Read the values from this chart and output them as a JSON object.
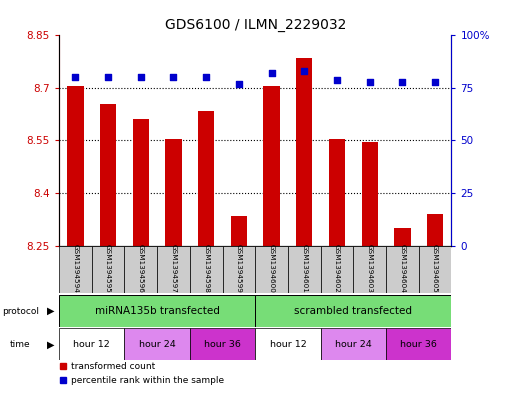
{
  "title": "GDS6100 / ILMN_2229032",
  "samples": [
    "GSM1394594",
    "GSM1394595",
    "GSM1394596",
    "GSM1394597",
    "GSM1394598",
    "GSM1394599",
    "GSM1394600",
    "GSM1394601",
    "GSM1394602",
    "GSM1394603",
    "GSM1394604",
    "GSM1394605"
  ],
  "bar_values": [
    8.705,
    8.655,
    8.61,
    8.555,
    8.635,
    8.335,
    8.705,
    8.785,
    8.555,
    8.545,
    8.3,
    8.34
  ],
  "percentile_values": [
    80,
    80,
    80,
    80,
    80,
    77,
    82,
    83,
    79,
    78,
    78,
    78
  ],
  "y_min": 8.25,
  "y_max": 8.85,
  "y_ticks": [
    8.25,
    8.4,
    8.55,
    8.7,
    8.85
  ],
  "y_tick_labels": [
    "8.25",
    "8.4",
    "8.55",
    "8.7",
    "8.85"
  ],
  "y2_ticks": [
    0,
    25,
    50,
    75,
    100
  ],
  "y2_tick_labels": [
    "0",
    "25",
    "50",
    "75",
    "100%"
  ],
  "bar_color": "#cc0000",
  "dot_color": "#0000cc",
  "protocol_labels": [
    "miRNA135b transfected",
    "scrambled transfected"
  ],
  "time_groups": [
    {
      "label": "hour 12",
      "color": "#ffffff",
      "span": [
        0,
        2
      ]
    },
    {
      "label": "hour 24",
      "color": "#dd88ee",
      "span": [
        2,
        4
      ]
    },
    {
      "label": "hour 36",
      "color": "#cc33cc",
      "span": [
        4,
        6
      ]
    },
    {
      "label": "hour 12",
      "color": "#ffffff",
      "span": [
        6,
        8
      ]
    },
    {
      "label": "hour 24",
      "color": "#dd88ee",
      "span": [
        8,
        10
      ]
    },
    {
      "label": "hour 36",
      "color": "#cc33cc",
      "span": [
        10,
        12
      ]
    }
  ],
  "legend_red_label": "transformed count",
  "legend_blue_label": "percentile rank within the sample",
  "protocol_arrow_label": "protocol",
  "time_arrow_label": "time",
  "background_color": "#ffffff",
  "plot_bg": "#ffffff",
  "grid_color": "#000000",
  "tick_color_left": "#cc0000",
  "tick_color_right": "#0000cc",
  "label_box_color": "#cccccc",
  "protocol_color": "#77dd77"
}
